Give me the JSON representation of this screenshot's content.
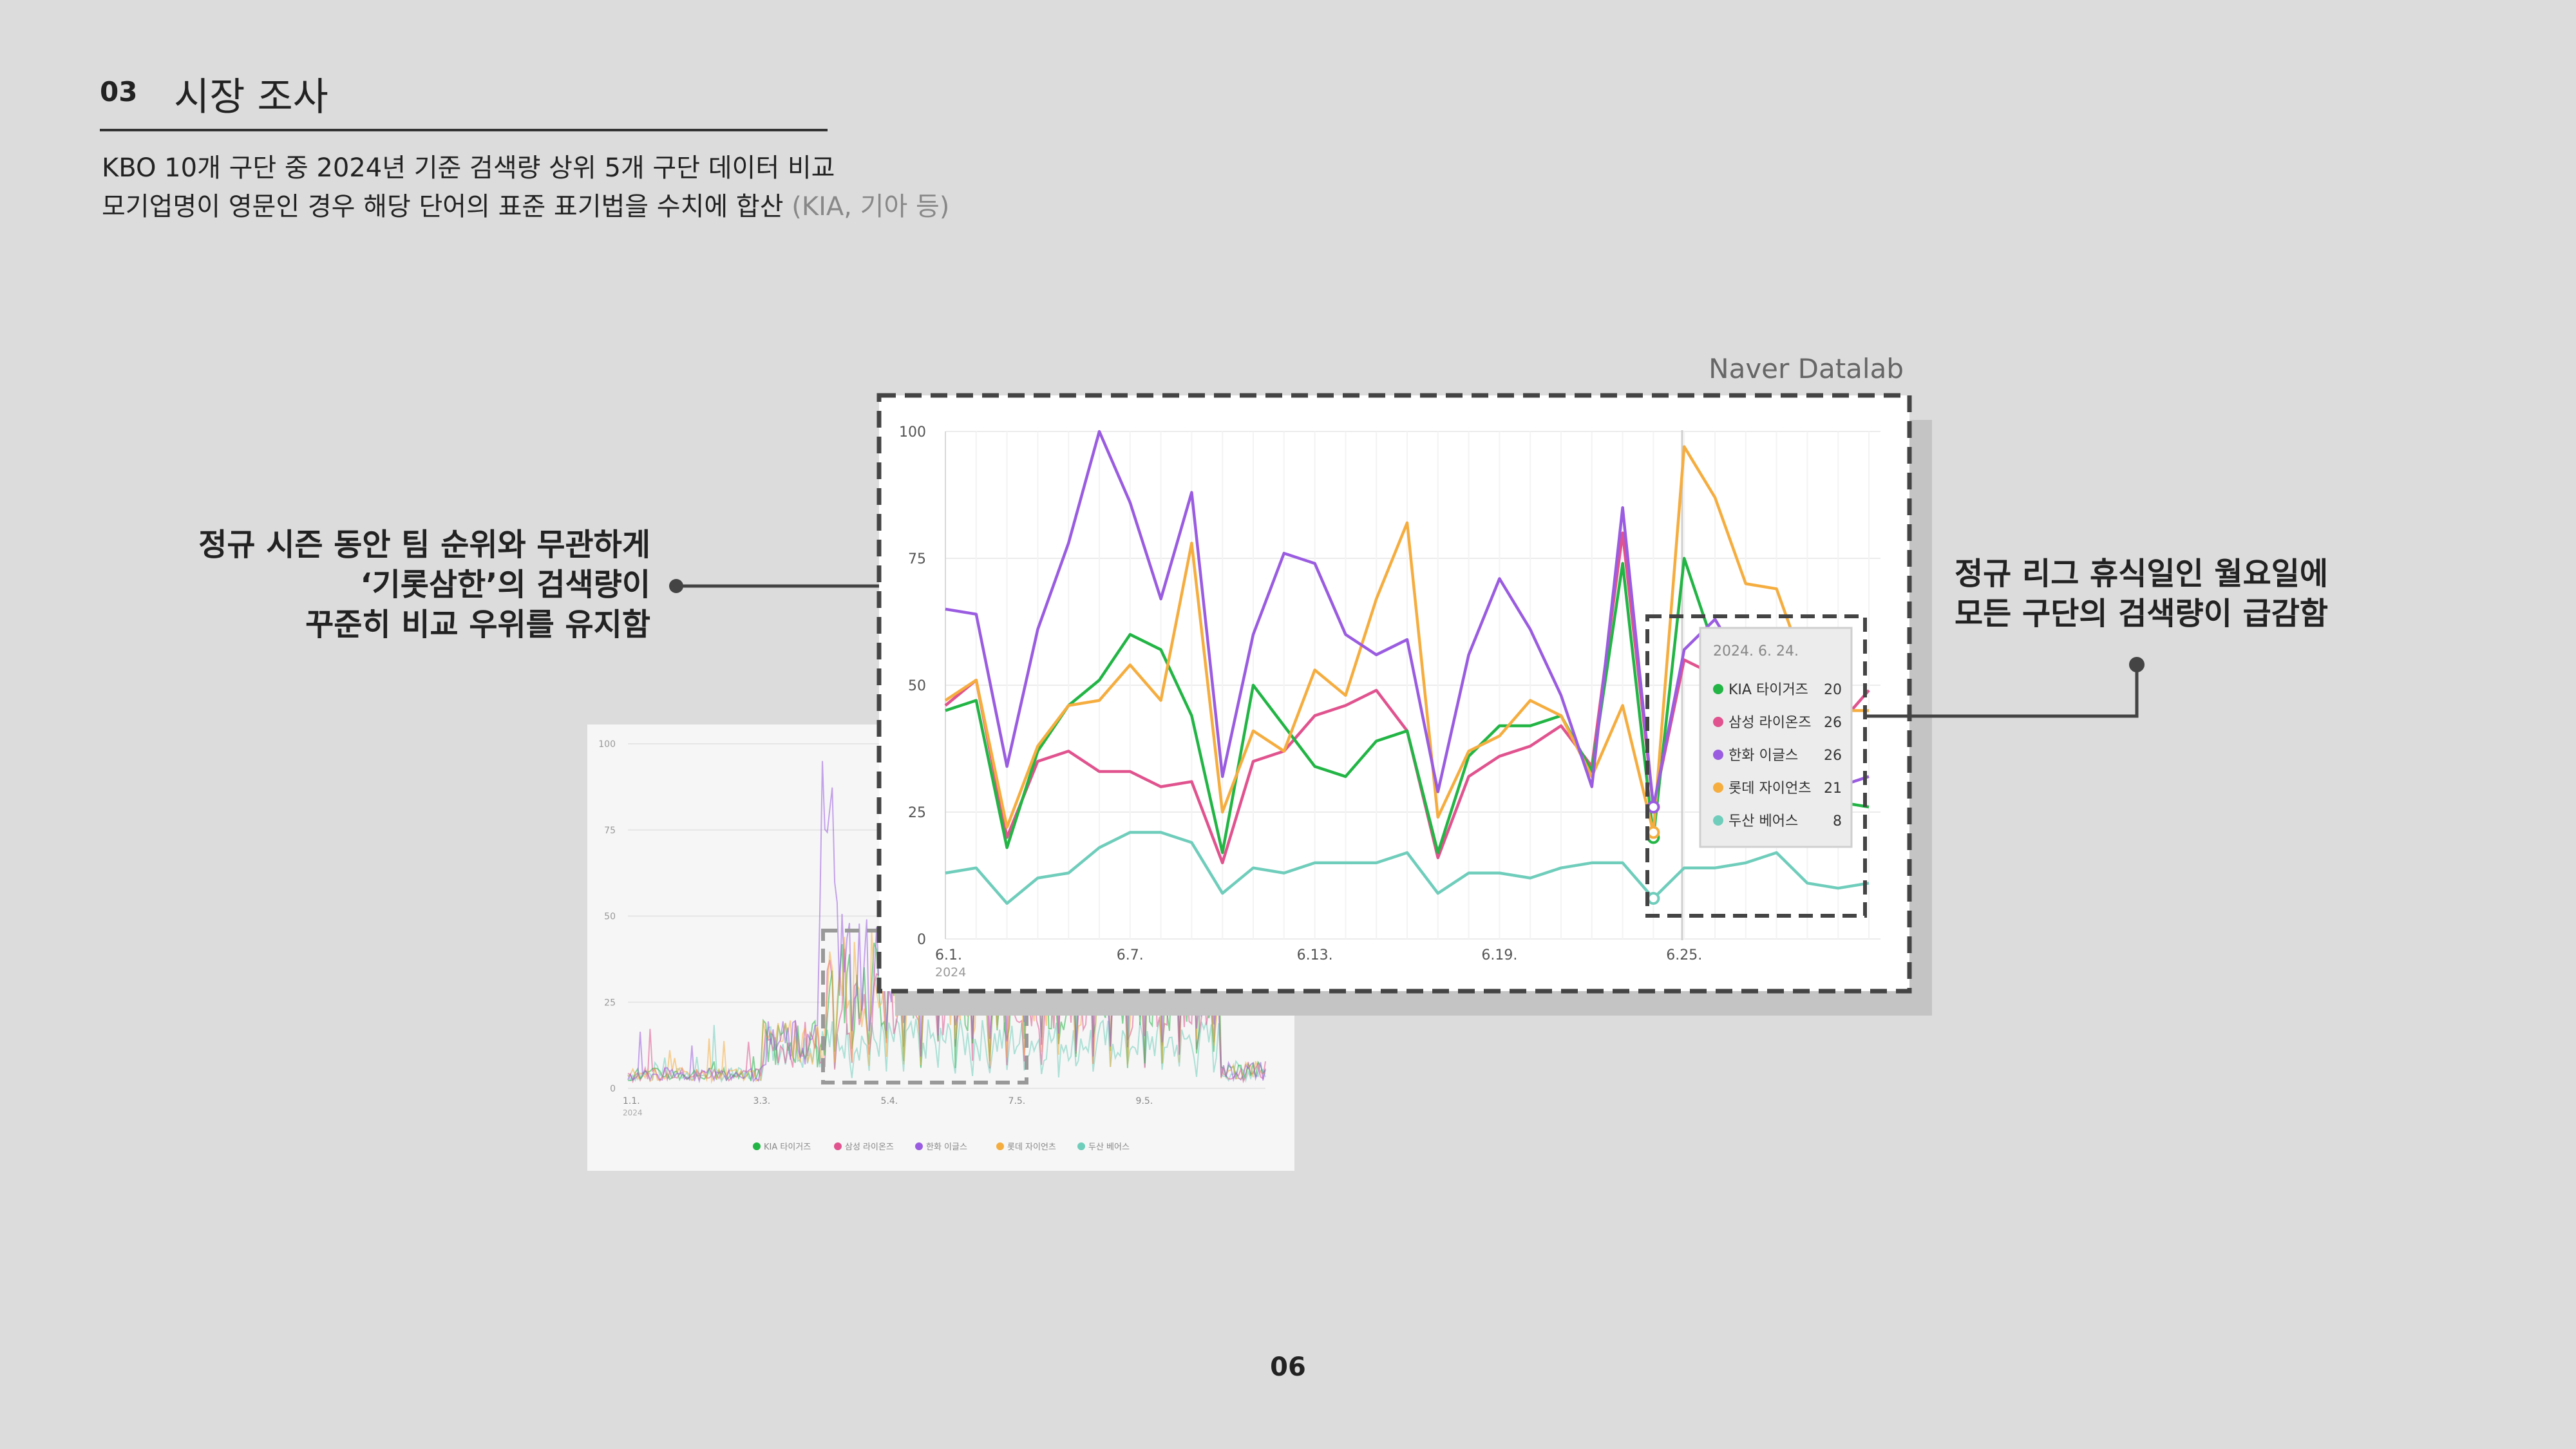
{
  "header": {
    "section_number": "03",
    "section_title": "시장 조사",
    "description_line1": "KBO 10개 구단 중 2024년 기준 검색량 상위 5개 구단 데이터 비교",
    "description_line2_main": "모기업명이 영문인 경우 해당 단어의 표준 표기법을 수치에 합산",
    "description_line2_note": "(KIA, 기아 등)"
  },
  "source_label": "Naver Datalab",
  "annotations": {
    "left": [
      "정규 시즌 동안 팀 순위와 무관하게",
      "‘기롯삼한’의 검색량이",
      "꾸준히 비교 우위를 유지함"
    ],
    "right": [
      "정규 리그 휴식일인 월요일에",
      "모든 구단의 검색량이 급감함"
    ]
  },
  "page_number": "06",
  "colors": {
    "kia": "#22b545",
    "samsung": "#e0538e",
    "hanwha": "#9a5ce0",
    "lotte": "#f5ad3f",
    "doosan": "#6fcdbb"
  },
  "chart_data": [
    {
      "type": "line",
      "x_ticks": [
        "6.1.",
        "6.7.",
        "6.13.",
        "6.19.",
        "6.25."
      ],
      "x_tick_index": [
        0,
        6,
        12,
        18,
        24
      ],
      "x_sub": "2024",
      "y_ticks": [
        "0",
        "25",
        "50",
        "75",
        "100"
      ],
      "ylim": [
        0,
        100
      ],
      "series": [
        {
          "key": "kia",
          "values": [
            45,
            47,
            18,
            37,
            46,
            51,
            60,
            57,
            44,
            17,
            50,
            42,
            34,
            32,
            39,
            41,
            17,
            36,
            42,
            42,
            44,
            33,
            74,
            20,
            75,
            57,
            54,
            53,
            30,
            27,
            26
          ]
        },
        {
          "key": "samsung",
          "values": [
            46,
            51,
            20,
            35,
            37,
            33,
            33,
            30,
            31,
            15,
            35,
            37,
            44,
            46,
            49,
            41,
            16,
            32,
            36,
            38,
            42,
            34,
            80,
            26,
            55,
            52,
            49,
            47,
            44,
            42,
            49
          ]
        },
        {
          "key": "hanwha",
          "values": [
            65,
            64,
            34,
            61,
            78,
            100,
            86,
            67,
            88,
            32,
            60,
            76,
            74,
            60,
            56,
            59,
            29,
            56,
            71,
            61,
            48,
            30,
            85,
            26,
            57,
            63,
            53,
            50,
            40,
            30,
            32
          ]
        },
        {
          "key": "lotte",
          "values": [
            47,
            51,
            22,
            38,
            46,
            47,
            54,
            47,
            78,
            25,
            41,
            37,
            53,
            48,
            67,
            82,
            24,
            37,
            40,
            47,
            44,
            32,
            46,
            21,
            97,
            87,
            70,
            69,
            52,
            45,
            45
          ]
        },
        {
          "key": "doosan",
          "values": [
            13,
            14,
            7,
            12,
            13,
            18,
            21,
            21,
            19,
            9,
            14,
            13,
            15,
            15,
            15,
            17,
            9,
            13,
            13,
            12,
            14,
            15,
            15,
            8,
            14,
            14,
            15,
            17,
            11,
            10,
            11
          ]
        }
      ],
      "tooltip": {
        "date": "2024. 6. 24.",
        "items": [
          {
            "key": "kia",
            "label": "KIA 타이거즈",
            "value": "20"
          },
          {
            "key": "samsung",
            "label": "삼성 라이온즈",
            "value": "26"
          },
          {
            "key": "hanwha",
            "label": "한화 이글스",
            "value": "26"
          },
          {
            "key": "lotte",
            "label": "롯데 자이언츠",
            "value": "21"
          },
          {
            "key": "doosan",
            "label": "두산 베어스",
            "value": "8"
          }
        ]
      }
    },
    {
      "type": "line",
      "x_ticks": [
        "1.1.",
        "3.3.",
        "5.4.",
        "7.5.",
        "9.5."
      ],
      "x_tick_fraction": [
        0.0,
        0.21,
        0.41,
        0.61,
        0.81
      ],
      "x_sub": "2024",
      "y_ticks": [
        "0",
        "25",
        "50",
        "75",
        "100"
      ],
      "ylim": [
        0,
        100
      ],
      "legend": [
        "KIA 타이거즈",
        "삼성 라이온즈",
        "한화 이글스",
        "롯데 자이언츠",
        "두산 베어스"
      ],
      "legend_keys": [
        "kia",
        "samsung",
        "hanwha",
        "lotte",
        "doosan"
      ]
    }
  ]
}
